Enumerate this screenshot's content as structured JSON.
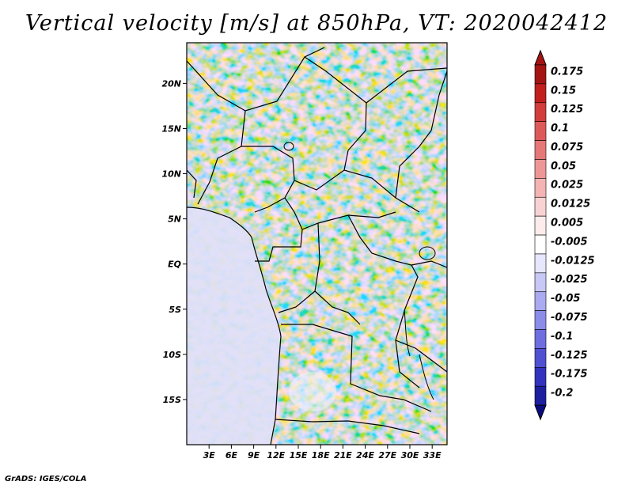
{
  "title": "Vertical velocity [m/s] at 850hPa, VT: 2020042412",
  "footer": "GrADS: IGES/COLA",
  "map": {
    "variable": "vertical velocity at 850hPa",
    "lon_range": [
      0,
      35
    ],
    "lat_range": [
      -20,
      24.5
    ],
    "lat_ticks": [
      {
        "value": 20,
        "label": "20N"
      },
      {
        "value": 15,
        "label": "15N"
      },
      {
        "value": 10,
        "label": "10N"
      },
      {
        "value": 5,
        "label": "5N"
      },
      {
        "value": 0,
        "label": "EQ"
      },
      {
        "value": -5,
        "label": "5S"
      },
      {
        "value": -10,
        "label": "10S"
      },
      {
        "value": -15,
        "label": "15S"
      }
    ],
    "lon_ticks": [
      {
        "value": 3,
        "label": "3E"
      },
      {
        "value": 6,
        "label": "6E"
      },
      {
        "value": 9,
        "label": "9E"
      },
      {
        "value": 12,
        "label": "12E"
      },
      {
        "value": 15,
        "label": "15E"
      },
      {
        "value": 18,
        "label": "18E"
      },
      {
        "value": 21,
        "label": "21E"
      },
      {
        "value": 24,
        "label": "24E"
      },
      {
        "value": 27,
        "label": "27E"
      },
      {
        "value": 30,
        "label": "30E"
      },
      {
        "value": 33,
        "label": "33E"
      }
    ]
  },
  "colorbar": {
    "labels": [
      "0.175",
      "0.15",
      "0.125",
      "0.1",
      "0.075",
      "0.05",
      "0.025",
      "0.0125",
      "0.005",
      "-0.005",
      "-0.0125",
      "-0.025",
      "-0.05",
      "-0.075",
      "-0.1",
      "-0.125",
      "-0.175",
      "-0.2"
    ],
    "colors": [
      "#a41414",
      "#c21e1e",
      "#d23c3c",
      "#de5a5a",
      "#e67878",
      "#ee9696",
      "#f4b4b4",
      "#f8d2d2",
      "#fcecec",
      "#ffffff",
      "#e6e6fc",
      "#c8c8f6",
      "#aaaaf0",
      "#8c8cea",
      "#6e6ee0",
      "#5050d2",
      "#3232be",
      "#1e1ea0",
      "#0a0a82"
    ]
  }
}
